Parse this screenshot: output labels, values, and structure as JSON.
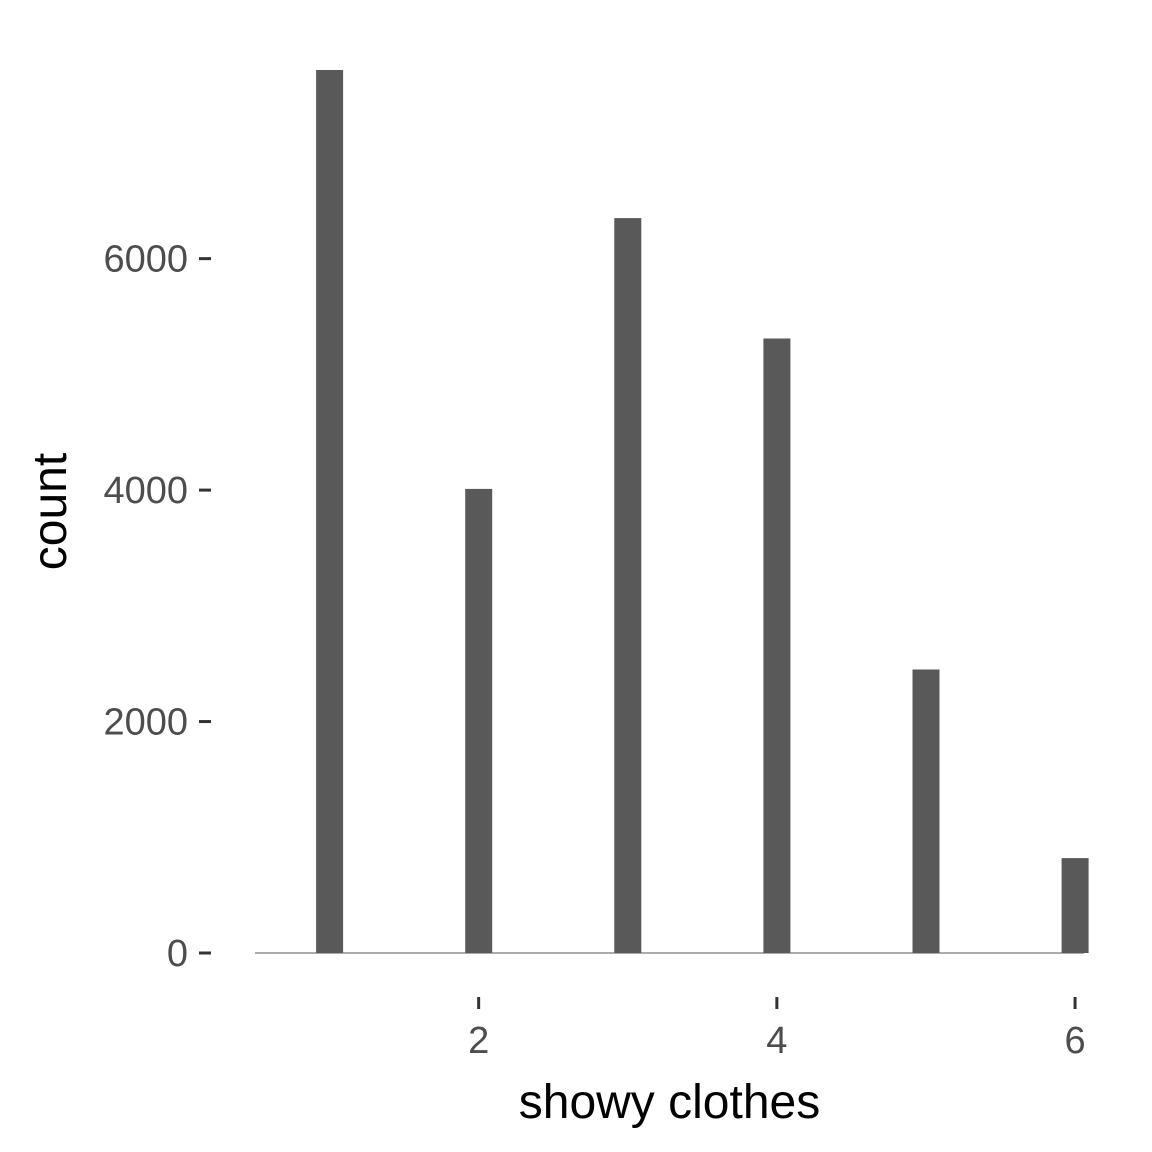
{
  "chart_data": {
    "type": "bar",
    "title": "",
    "xlabel": "showy clothes",
    "ylabel": "count",
    "x": [
      1,
      2,
      3,
      4,
      5,
      6
    ],
    "values": [
      7630,
      4010,
      6350,
      5310,
      2450,
      820
    ],
    "xlim": [
      0.5,
      6.06
    ],
    "ylim": [
      0,
      7630
    ],
    "x_ticks": [
      2,
      4,
      6
    ],
    "y_ticks": [
      0,
      2000,
      4000,
      6000
    ],
    "bar_color": "#595959",
    "grid": false,
    "legend": "none"
  }
}
